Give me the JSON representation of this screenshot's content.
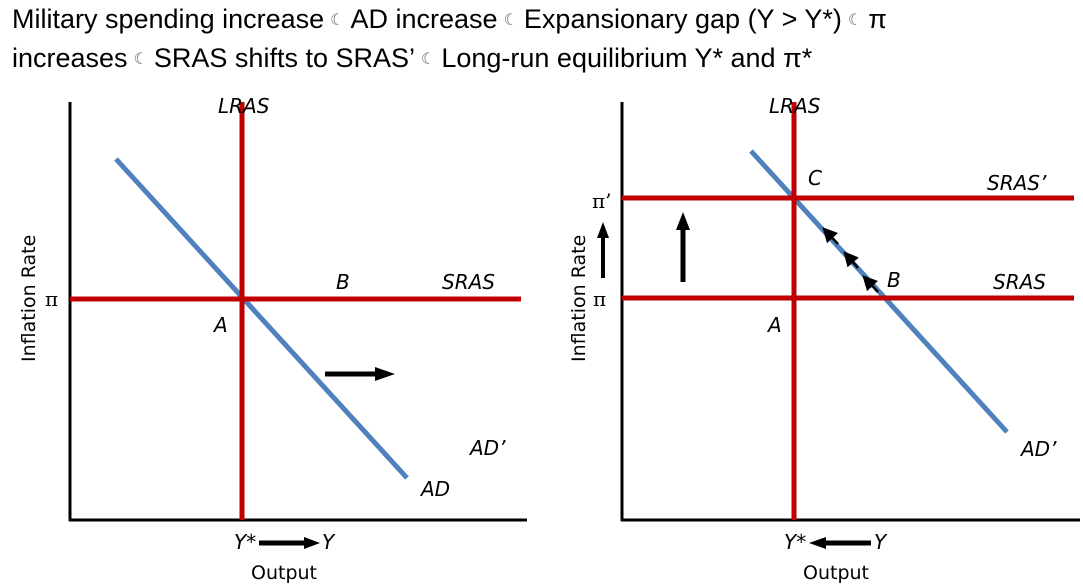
{
  "title": {
    "steps": [
      "Military spending increase",
      "AD increase",
      "Expansionary gap (Y > Y*)",
      "π increases",
      "SRAS shifts to SRAS’",
      "Long-run equilibrium Y* and π*"
    ],
    "separator": "☾"
  },
  "left": {
    "ylabel": "Inflation Rate",
    "xlabel": "Output",
    "lras": "LRAS",
    "sras": "SRAS",
    "ad": "AD",
    "ad_prime": "AD’",
    "point_a": "A",
    "point_b": "B",
    "pi": "π",
    "ystar": "Y*",
    "y": "Y"
  },
  "right": {
    "ylabel": "Inflation Rate",
    "xlabel": "Output",
    "lras": "LRAS",
    "sras": "SRAS",
    "sras_prime": "SRAS’",
    "ad_prime": "AD’",
    "point_a": "A",
    "point_b": "B",
    "point_c": "C",
    "pi": "π",
    "pi_prime": "π’",
    "ystar": "Y*",
    "y": "Y"
  },
  "colors": {
    "red": "#c00000",
    "blue": "#4f81bd",
    "black": "#000000"
  }
}
